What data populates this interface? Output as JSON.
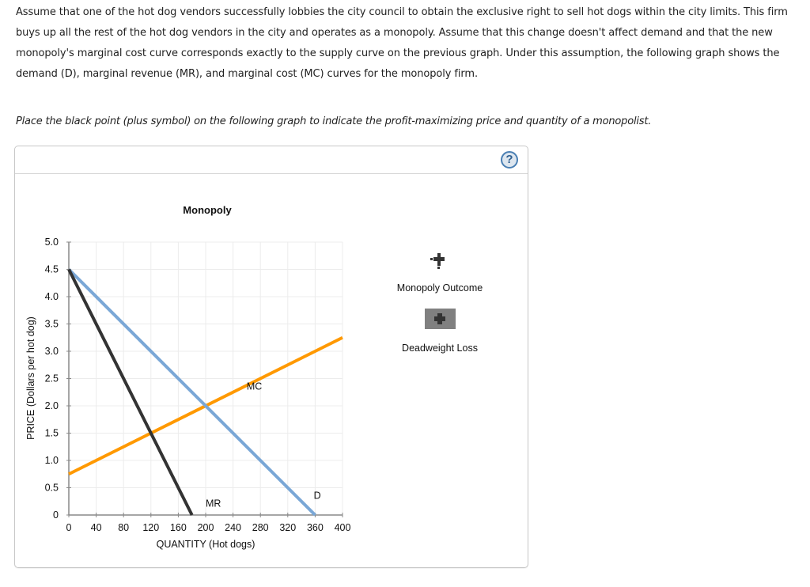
{
  "intro": {
    "text": "Assume that one of the hot dog vendors successfully lobbies the city council to obtain the exclusive right to sell hot dogs within the city limits. This firm buys up all the rest of the hot dog vendors in the city and operates as a monopoly. Assume that this change doesn't affect demand and that the new monopoly's marginal cost curve corresponds exactly to the supply curve on the previous graph. Under this assumption, the following graph shows the demand (D), marginal revenue (MR), and marginal cost (MC) curves for the monopoly firm."
  },
  "instruction": "Place the black point (plus symbol) on the following graph to indicate the profit-maximizing price and quantity of a monopolist.",
  "panel": {
    "help_icon": "question-mark-icon",
    "help_label": "?"
  },
  "legend": {
    "items": [
      {
        "label": "Monopoly Outcome",
        "icon": "black-plus-point-icon"
      },
      {
        "label": "Deadweight Loss",
        "icon": "gray-area-plus-icon"
      }
    ]
  },
  "colors": {
    "demand": "#7aa7d6",
    "mr": "#333333",
    "mc": "#ff9900",
    "grid": "#ececec",
    "axis": "#888888",
    "dwl_fill": "#808080",
    "help_border": "#4a7fb3"
  },
  "chart_data": {
    "type": "line",
    "title": "Monopoly",
    "xlabel": "QUANTITY (Hot dogs)",
    "ylabel": "PRICE (Dollars per hot dog)",
    "xlim": [
      0,
      400
    ],
    "ylim": [
      0,
      5.0
    ],
    "x_ticks": [
      "0",
      "40",
      "80",
      "120",
      "160",
      "200",
      "240",
      "280",
      "320",
      "360",
      "400"
    ],
    "y_ticks": [
      "0",
      "0.5",
      "1.0",
      "1.5",
      "2.0",
      "2.5",
      "3.0",
      "3.5",
      "4.0",
      "4.5",
      "5.0"
    ],
    "grid": true,
    "legend_position": "right",
    "series": [
      {
        "name": "D",
        "label": "D",
        "points": [
          [
            0,
            4.5
          ],
          [
            360,
            0
          ]
        ]
      },
      {
        "name": "MR",
        "label": "MR",
        "points": [
          [
            0,
            4.5
          ],
          [
            180,
            0
          ]
        ]
      },
      {
        "name": "MC",
        "label": "MC",
        "points": [
          [
            0,
            0.75
          ],
          [
            400,
            3.25
          ]
        ]
      }
    ],
    "annotations": [
      {
        "text": "MC",
        "x": 260,
        "y": 2.3
      },
      {
        "text": "MR",
        "x": 200,
        "y": 0.15
      },
      {
        "text": "D",
        "x": 358,
        "y": 0.3
      }
    ]
  }
}
